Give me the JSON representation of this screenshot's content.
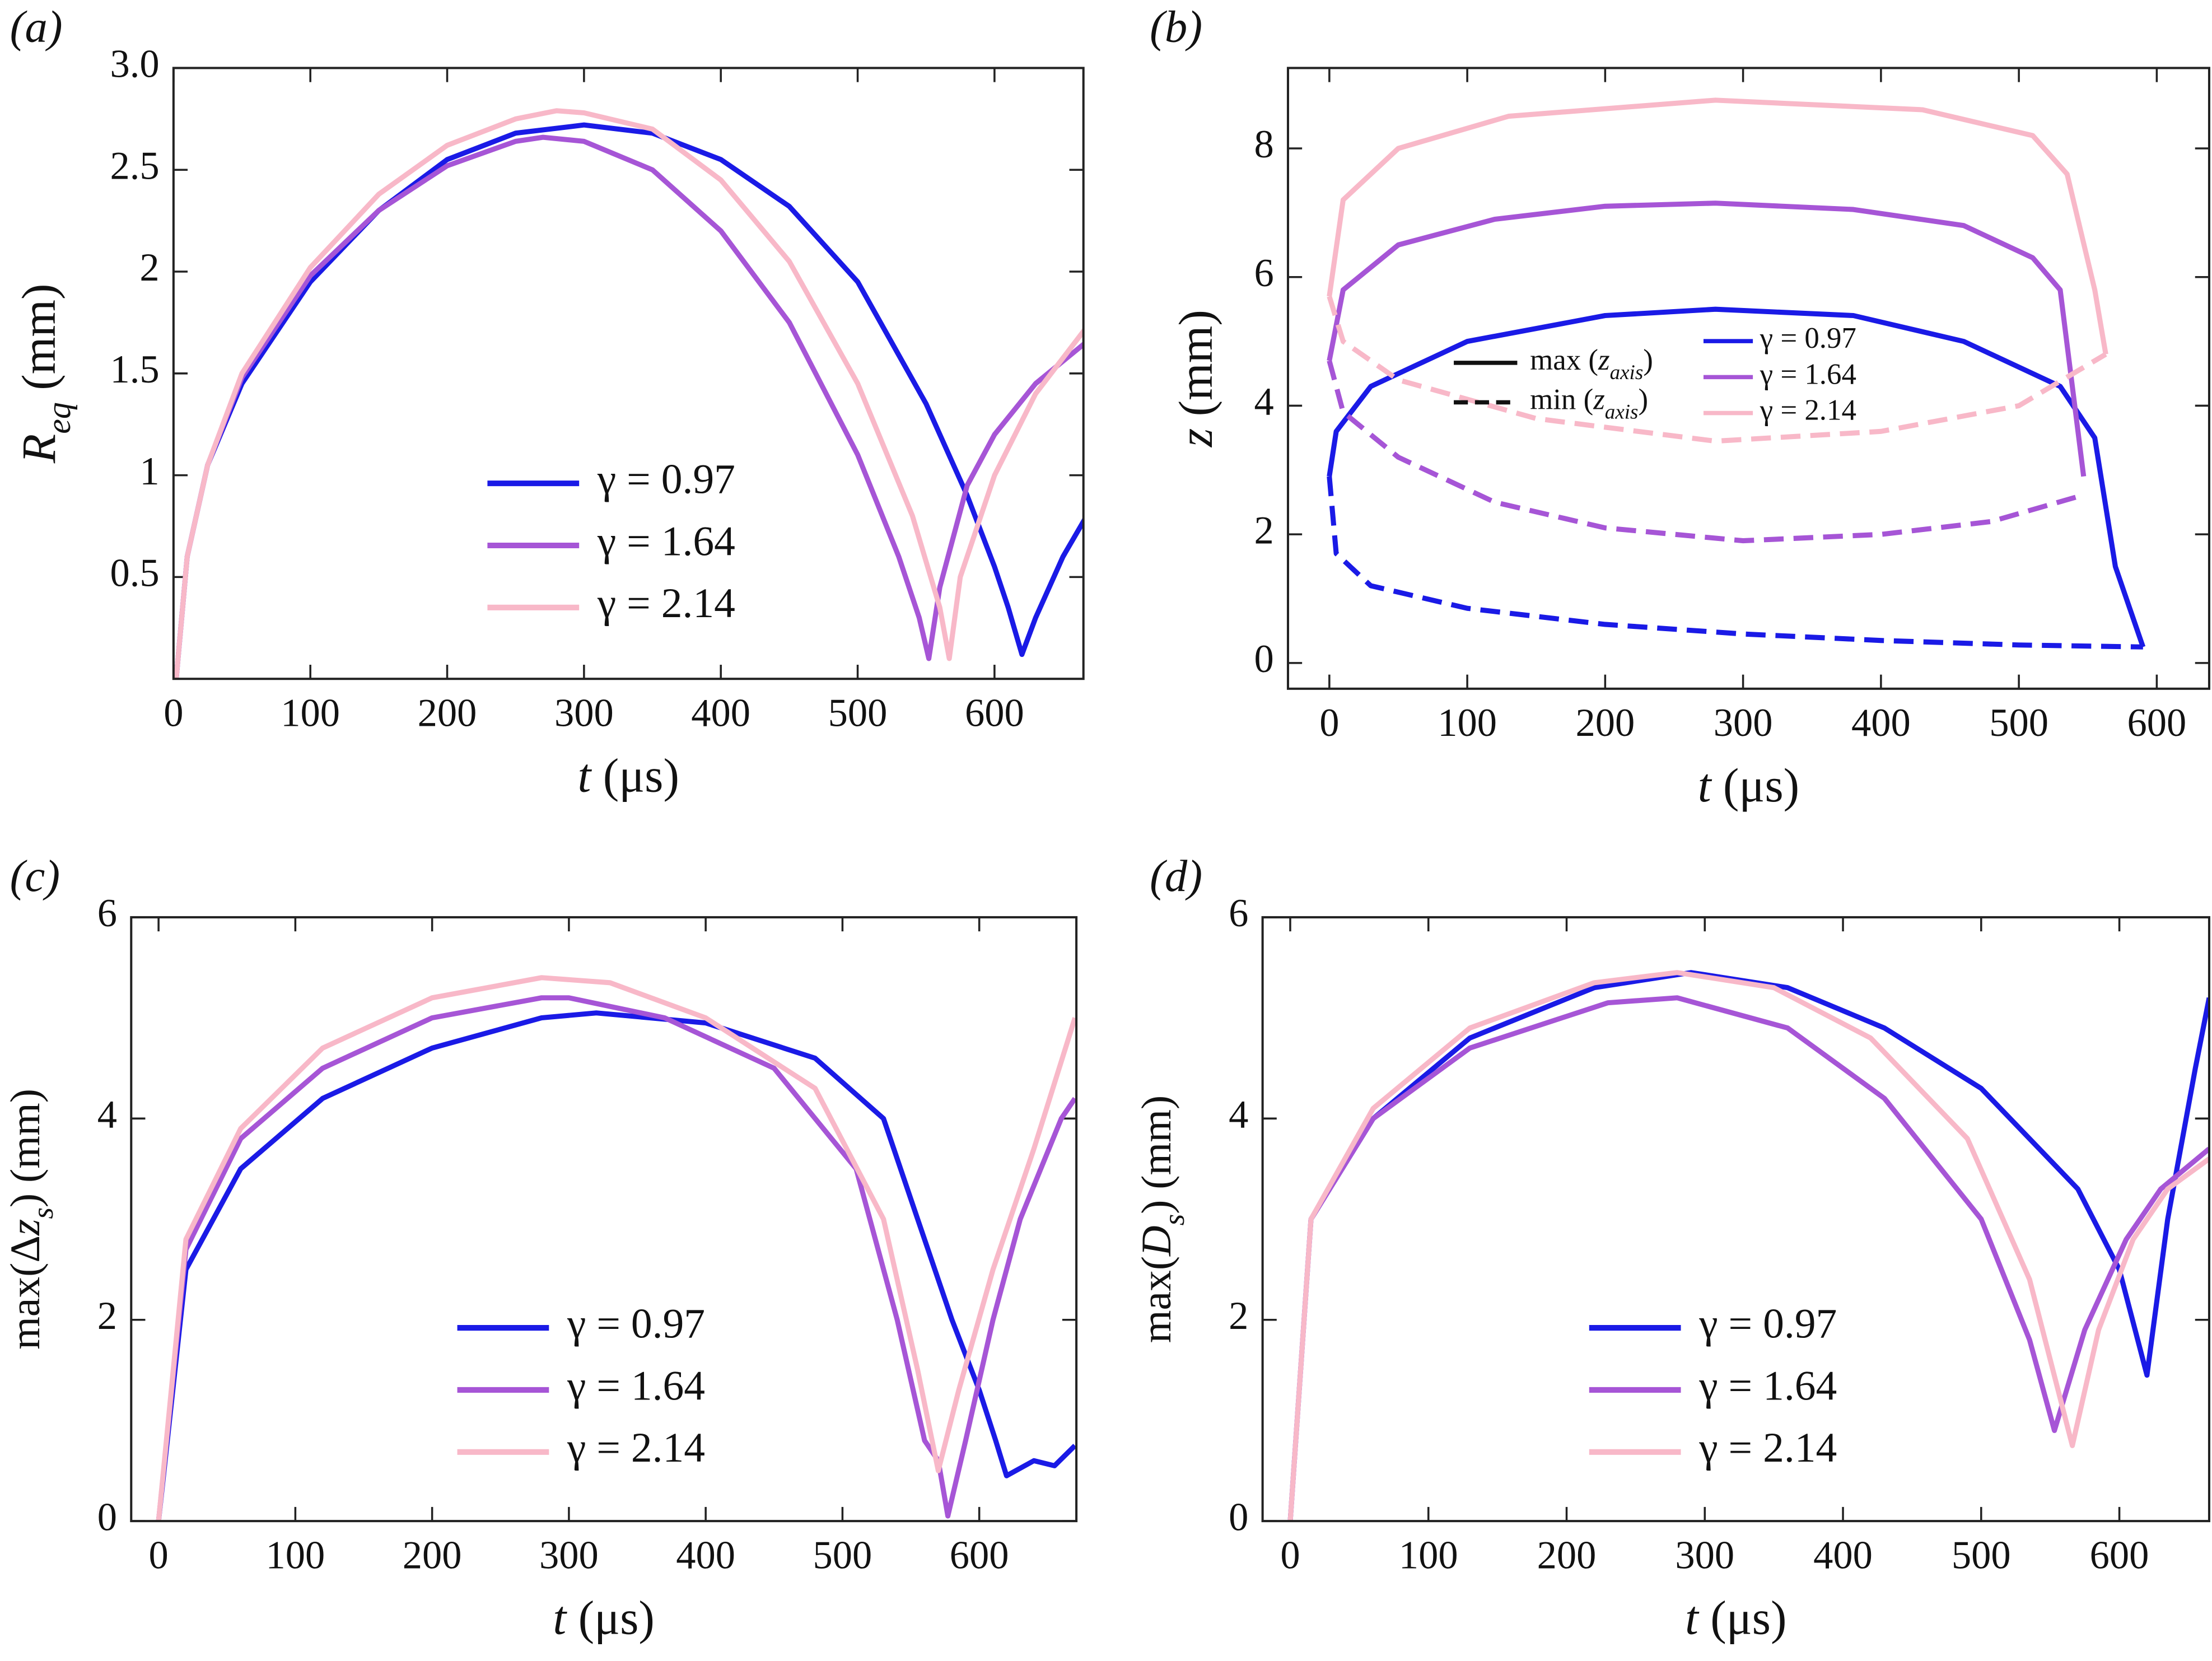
{
  "chart_data": [
    {
      "type": "line",
      "panel_label": "(a)",
      "xlabel": {
        "var": "t",
        "unit": " (μs)"
      },
      "ylabel": {
        "var": "R",
        "sub": "eq",
        "unit": " (mm)"
      },
      "xlim": [
        0,
        665
      ],
      "ylim": [
        0,
        3.0
      ],
      "xticks": [
        0,
        100,
        200,
        300,
        400,
        500,
        600
      ],
      "yticks": [
        0.5,
        1.0,
        1.5,
        2.0,
        2.5,
        {
          "value": 3.0,
          "label": "3.0"
        }
      ],
      "legend": "lower center",
      "series": [
        {
          "name": "γ = 0.97",
          "color": "#1a1ae6",
          "x": [
            2,
            10,
            25,
            50,
            100,
            150,
            200,
            250,
            300,
            350,
            400,
            450,
            500,
            550,
            580,
            600,
            610,
            620,
            630,
            650,
            670
          ],
          "values": [
            0,
            0.6,
            1.05,
            1.45,
            1.95,
            2.3,
            2.55,
            2.68,
            2.72,
            2.68,
            2.55,
            2.32,
            1.95,
            1.35,
            0.9,
            0.55,
            0.35,
            0.12,
            0.3,
            0.6,
            0.83
          ]
        },
        {
          "name": "γ = 1.64",
          "color": "#a655d6",
          "x": [
            2,
            10,
            25,
            50,
            100,
            150,
            200,
            250,
            270,
            300,
            350,
            400,
            450,
            500,
            530,
            545,
            552,
            560,
            580,
            600,
            630,
            670
          ],
          "values": [
            0,
            0.6,
            1.05,
            1.48,
            1.98,
            2.3,
            2.52,
            2.64,
            2.66,
            2.64,
            2.5,
            2.2,
            1.75,
            1.1,
            0.6,
            0.3,
            0.1,
            0.45,
            0.95,
            1.2,
            1.45,
            1.67
          ]
        },
        {
          "name": "γ = 2.14",
          "color": "#f8b8c8",
          "x": [
            2,
            10,
            25,
            50,
            100,
            150,
            200,
            250,
            280,
            300,
            350,
            400,
            450,
            500,
            540,
            560,
            567,
            575,
            600,
            630,
            670
          ],
          "values": [
            0,
            0.6,
            1.05,
            1.5,
            2.02,
            2.38,
            2.62,
            2.75,
            2.79,
            2.78,
            2.7,
            2.45,
            2.05,
            1.45,
            0.8,
            0.35,
            0.1,
            0.5,
            1.0,
            1.4,
            1.75
          ]
        }
      ]
    },
    {
      "type": "line",
      "panel_label": "(b)",
      "xlabel": {
        "var": "t",
        "unit": " (μs)"
      },
      "ylabel": {
        "var": "z",
        "unit": " (mm)"
      },
      "xlim": [
        -30,
        638
      ],
      "ylim": [
        -0.4,
        9.25
      ],
      "xticks": [
        0,
        100,
        200,
        300,
        400,
        500,
        600
      ],
      "yticks": [
        0,
        2,
        4,
        6,
        8
      ],
      "legend": "center left",
      "style_legend": [
        {
          "prefix": "max (",
          "var": "z",
          "sub": "axis",
          "suffix": ")",
          "style": "solid"
        },
        {
          "prefix": "min (",
          "var": "z",
          "sub": "axis",
          "suffix": ")",
          "style": "dashed"
        }
      ],
      "series": [
        {
          "name": "γ = 0.97",
          "color": "#1a1ae6",
          "style": "solid",
          "x": [
            0,
            5,
            30,
            100,
            200,
            280,
            380,
            460,
            530,
            555,
            570,
            590
          ],
          "values": [
            2.9,
            3.6,
            4.3,
            5.0,
            5.4,
            5.5,
            5.4,
            5.0,
            4.3,
            3.5,
            1.5,
            0.25
          ]
        },
        {
          "name": "γ = 1.64",
          "color": "#a655d6",
          "style": "solid",
          "x": [
            0,
            10,
            50,
            120,
            200,
            280,
            380,
            460,
            510,
            530,
            547
          ],
          "values": [
            4.7,
            5.8,
            6.5,
            6.9,
            7.1,
            7.15,
            7.05,
            6.8,
            6.3,
            5.8,
            2.9
          ]
        },
        {
          "name": "γ = 2.14",
          "color": "#f8b8c8",
          "style": "solid",
          "x": [
            0,
            10,
            50,
            130,
            280,
            430,
            510,
            535,
            555,
            563
          ],
          "values": [
            5.7,
            7.2,
            8.0,
            8.5,
            8.75,
            8.6,
            8.2,
            7.6,
            5.8,
            4.8
          ]
        },
        {
          "color": "#1a1ae6",
          "style": "dashed",
          "x": [
            0,
            5,
            30,
            100,
            200,
            300,
            400,
            500,
            590
          ],
          "values": [
            2.9,
            1.7,
            1.2,
            0.85,
            0.6,
            0.45,
            0.35,
            0.28,
            0.25
          ]
        },
        {
          "color": "#a655d6",
          "style": "dashed",
          "x": [
            0,
            10,
            50,
            120,
            200,
            300,
            400,
            480,
            545
          ],
          "values": [
            4.7,
            3.9,
            3.2,
            2.5,
            2.1,
            1.9,
            2.0,
            2.2,
            2.6
          ]
        },
        {
          "color": "#f8b8c8",
          "style": "dashed",
          "x": [
            0,
            10,
            50,
            150,
            280,
            400,
            500,
            563
          ],
          "values": [
            5.7,
            5.0,
            4.4,
            3.8,
            3.45,
            3.6,
            4.0,
            4.8
          ]
        }
      ]
    },
    {
      "type": "line",
      "panel_label": "(c)",
      "xlabel": {
        "var": "t",
        "unit": " (μs)"
      },
      "ylabel": {
        "prefix": "max(Δ",
        "var": "z",
        "sub": "s",
        "unit": ") (mm)"
      },
      "xlim": [
        -20,
        671
      ],
      "ylim": [
        0,
        6
      ],
      "xticks": [
        0,
        100,
        200,
        300,
        400,
        500,
        600
      ],
      "yticks": [
        0,
        2,
        4,
        6
      ],
      "legend": "lower center",
      "series": [
        {
          "name": "γ = 0.97",
          "color": "#1a1ae6",
          "x": [
            0,
            20,
            60,
            120,
            200,
            280,
            320,
            400,
            480,
            530,
            555,
            580,
            600,
            612,
            620,
            640,
            655,
            670
          ],
          "values": [
            0,
            2.5,
            3.5,
            4.2,
            4.7,
            5.0,
            5.05,
            4.95,
            4.6,
            4.0,
            3.0,
            2.0,
            1.3,
            0.8,
            0.45,
            0.6,
            0.55,
            0.75
          ]
        },
        {
          "name": "γ = 1.64",
          "color": "#a655d6",
          "x": [
            0,
            20,
            60,
            120,
            200,
            280,
            300,
            370,
            450,
            510,
            540,
            560,
            570,
            577,
            590,
            610,
            630,
            660,
            670
          ],
          "values": [
            0,
            2.7,
            3.8,
            4.5,
            5.0,
            5.2,
            5.2,
            5.0,
            4.5,
            3.5,
            2.0,
            0.8,
            0.6,
            0.05,
            0.8,
            2.0,
            3.0,
            4.0,
            4.2
          ]
        },
        {
          "name": "γ = 2.14",
          "color": "#f8b8c8",
          "x": [
            0,
            20,
            60,
            120,
            200,
            280,
            330,
            400,
            480,
            530,
            555,
            570,
            585,
            610,
            640,
            670
          ],
          "values": [
            0,
            2.8,
            3.9,
            4.7,
            5.2,
            5.4,
            5.35,
            5.0,
            4.3,
            3.0,
            1.5,
            0.5,
            1.3,
            2.5,
            3.7,
            5.0
          ]
        }
      ]
    },
    {
      "type": "line",
      "panel_label": "(d)",
      "xlabel": {
        "var": "t",
        "unit": " (μs)"
      },
      "ylabel": {
        "prefix": "max(",
        "var": "D",
        "sub": "s",
        "unit": ") (mm)"
      },
      "xlim": [
        -20,
        665
      ],
      "ylim": [
        0,
        6
      ],
      "xticks": [
        0,
        100,
        200,
        300,
        400,
        500,
        600
      ],
      "yticks": [
        0,
        2,
        4,
        6
      ],
      "legend": "lower center",
      "series": [
        {
          "name": "γ = 0.97",
          "color": "#1a1ae6",
          "x": [
            0,
            15,
            60,
            130,
            220,
            290,
            360,
            430,
            500,
            570,
            600,
            620,
            635,
            655,
            665
          ],
          "values": [
            0,
            3.0,
            4.0,
            4.8,
            5.3,
            5.45,
            5.3,
            4.9,
            4.3,
            3.3,
            2.5,
            1.45,
            3.0,
            4.5,
            5.2
          ]
        },
        {
          "name": "γ = 1.64",
          "color": "#a655d6",
          "x": [
            0,
            15,
            60,
            130,
            230,
            280,
            360,
            430,
            500,
            535,
            553,
            575,
            605,
            630,
            665
          ],
          "values": [
            0,
            3.0,
            4.0,
            4.7,
            5.15,
            5.2,
            4.9,
            4.2,
            3.0,
            1.8,
            0.9,
            1.9,
            2.8,
            3.3,
            3.7
          ]
        },
        {
          "name": "γ = 2.14",
          "color": "#f8b8c8",
          "x": [
            0,
            15,
            60,
            130,
            220,
            280,
            350,
            420,
            490,
            535,
            566,
            585,
            610,
            635,
            665
          ],
          "values": [
            0,
            3.0,
            4.1,
            4.9,
            5.35,
            5.45,
            5.3,
            4.8,
            3.8,
            2.4,
            0.75,
            1.9,
            2.8,
            3.3,
            3.6
          ]
        }
      ]
    }
  ]
}
